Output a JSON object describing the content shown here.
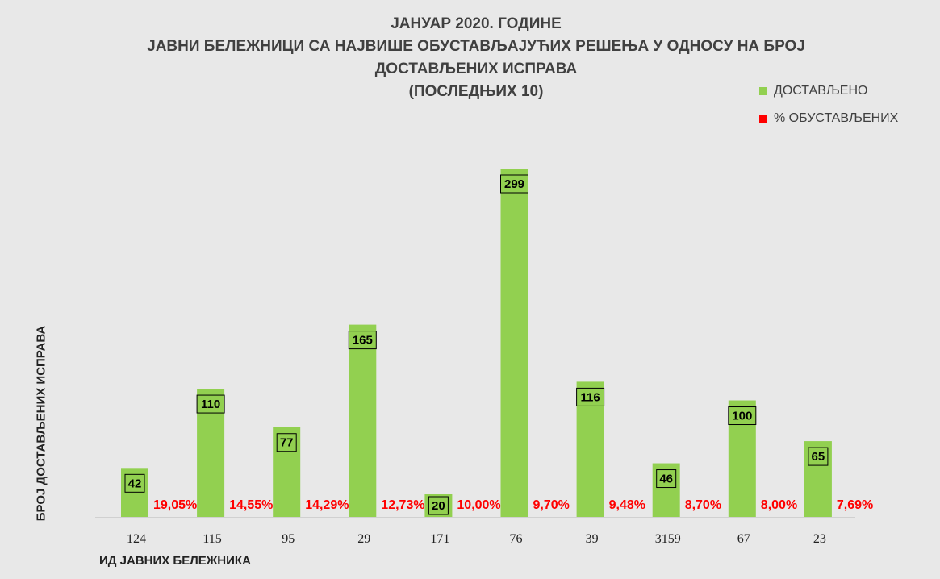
{
  "title_lines": [
    "ЈАНУАР 2020. ГОДИНЕ",
    "ЈАВНИ БЕЛЕЖНИЦИ СА НАЈВИШЕ ОБУСТАВЉАЈУЋИХ РЕШЕЊА У ОДНОСУ НА БРОЈ",
    "ДОСТАВЉЕНИХ ИСПРАВА",
    "(ПОСЛЕДЊИХ 10)"
  ],
  "colors": {
    "bar": "#92d050",
    "percent": "#ff0000",
    "background": "#e8e8e8",
    "label_box": "#92d050"
  },
  "chart_data": {
    "type": "bar",
    "title": "ЈАНУАР 2020. ГОДИНЕ ЈАВНИ БЕЛЕЖНИЦИ СА НАЈВИШЕ ОБУСТАВЉАЈУЋИХ РЕШЕЊА У ОДНОСУ НА БРОЈ ДОСТАВЉЕНИХ ИСПРАВА (ПОСЛЕДЊИХ 10)",
    "xlabel": "ИД ЈАВНИХ БЕЛЕЖНИКА",
    "ylabel": "БРОЈ ДОСТАВЉЕНИХ ИСПРАВА",
    "categories": [
      "124",
      "115",
      "95",
      "29",
      "171",
      "76",
      "39",
      "3159",
      "67",
      "23"
    ],
    "ylim": [
      0,
      320
    ],
    "grid": false,
    "legend_position": "top-right",
    "series": [
      {
        "name": "ДОСТАВЉЕНО",
        "values": [
          42,
          110,
          77,
          165,
          20,
          299,
          116,
          46,
          100,
          65
        ],
        "labels": [
          "42",
          "110",
          "77",
          "165",
          "20",
          "299",
          "116",
          "46",
          "100",
          "65"
        ]
      },
      {
        "name": "% ОБУСТАВЉЕНИХ",
        "values": [
          19.05,
          14.55,
          14.29,
          12.73,
          10.0,
          9.7,
          9.48,
          8.7,
          8.0,
          7.69
        ],
        "labels": [
          "19,05%",
          "14,55%",
          "14,29%",
          "12,73%",
          "10,00%",
          "9,70%",
          "9,48%",
          "8,70%",
          "8,00%",
          "7,69%"
        ]
      }
    ]
  }
}
